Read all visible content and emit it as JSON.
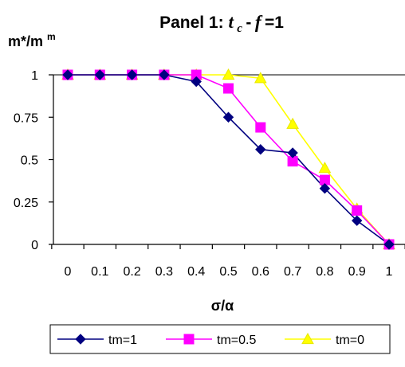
{
  "chart_data": {
    "type": "line",
    "title": {
      "prefix": "Panel 1: ",
      "t": "t",
      "t_sub": "c",
      "dash": "-",
      "f": "f",
      "suffix": "=1"
    },
    "ylabel": {
      "base": "m*/m",
      "sup": "m"
    },
    "xlabel": "σ/α",
    "x_ticks": [
      "0",
      "0.1",
      "0.2",
      "0.3",
      "0.4",
      "0.5",
      "0.6",
      "0.7",
      "0.8",
      "0.9",
      "1"
    ],
    "y_ticks": [
      "0",
      "0.25",
      "0.5",
      "0.75",
      "1"
    ],
    "ylim": [
      0,
      1
    ],
    "grid": false,
    "legend_position": "bottom",
    "series": [
      {
        "name": "tm=1",
        "marker": "diamond",
        "color": "#000080",
        "values": [
          1,
          1,
          1,
          1,
          0.96,
          0.75,
          0.56,
          0.54,
          0.33,
          0.14,
          0
        ]
      },
      {
        "name": "tm=0.5",
        "marker": "square",
        "color": "#FF00FF",
        "values": [
          1,
          1,
          1,
          1,
          1,
          0.92,
          0.69,
          0.49,
          0.38,
          0.2,
          0
        ]
      },
      {
        "name": "tm=0",
        "marker": "triangle",
        "color": "#FFFF00",
        "values": [
          1,
          1,
          1,
          1,
          1,
          1,
          0.98,
          0.71,
          0.45,
          0.21,
          0
        ]
      }
    ]
  }
}
